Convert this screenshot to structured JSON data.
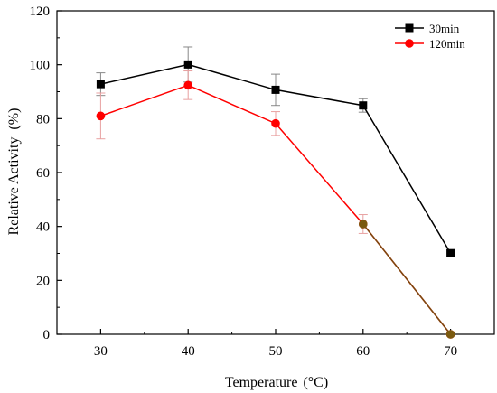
{
  "chart_data": {
    "type": "line",
    "xlabel": "Temperature",
    "xlabel_unit": "(°C)",
    "ylabel": "Relative Activity",
    "ylabel_unit": "(%)",
    "xlim": [
      25,
      75
    ],
    "ylim": [
      0,
      120
    ],
    "x_ticks": [
      30,
      40,
      50,
      60,
      70
    ],
    "y_ticks": [
      0,
      20,
      40,
      60,
      80,
      100,
      120
    ],
    "grid": false,
    "legend_position": "top-right",
    "series": [
      {
        "name": "30min",
        "color": "#000000",
        "marker": "square",
        "x": [
          30,
          40,
          50,
          60,
          70
        ],
        "y": [
          92.8,
          100.1,
          90.7,
          84.9,
          30.1
        ],
        "error": [
          4.2,
          6.5,
          5.8,
          2.5,
          0
        ]
      },
      {
        "name": "120min",
        "color": "#ff0000",
        "marker": "circle",
        "x": [
          30,
          40,
          50,
          60,
          70
        ],
        "y": [
          81,
          92.4,
          78.2,
          40.9,
          0
        ],
        "error": [
          8.5,
          5.3,
          4.4,
          3.5,
          0
        ]
      }
    ]
  }
}
